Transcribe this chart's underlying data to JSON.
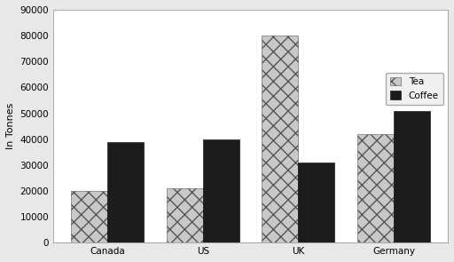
{
  "categories": [
    "Canada",
    "US",
    "UK",
    "Germany"
  ],
  "tea_values": [
    20000,
    21000,
    80000,
    42000
  ],
  "coffee_values": [
    39000,
    40000,
    31000,
    51000
  ],
  "ylabel": "In Tonnes",
  "ylim": [
    0,
    90000
  ],
  "yticks": [
    0,
    10000,
    20000,
    30000,
    40000,
    50000,
    60000,
    70000,
    80000,
    90000
  ],
  "tea_color": "#c8c8c8",
  "tea_hatch": "xx",
  "coffee_color": "#1c1c1c",
  "legend_labels": [
    "Tea",
    "Coffee"
  ],
  "bar_width": 0.38,
  "plot_bg_color": "#ffffff",
  "fig_bg_color": "#e8e8e8",
  "grid_color": "#ffffff",
  "label_fontsize": 8,
  "tick_fontsize": 7.5
}
